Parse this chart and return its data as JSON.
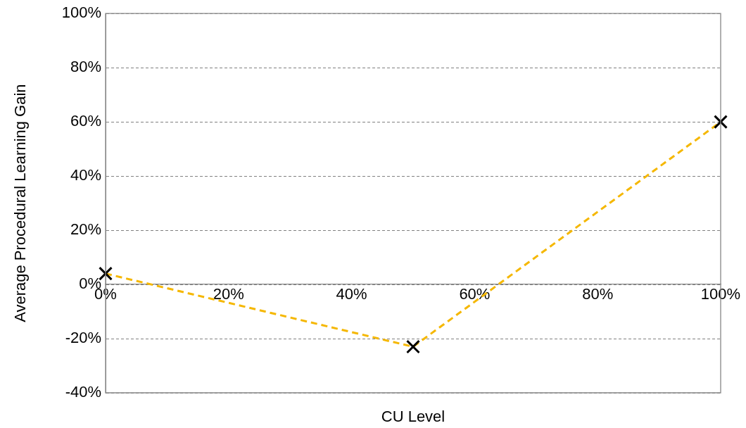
{
  "chart_data": {
    "type": "line",
    "xlabel": "CU Level",
    "ylabel": "Average Procedural Learning Gain",
    "x": [
      0,
      50,
      100
    ],
    "series": [
      {
        "color": "#f5b700",
        "values": [
          4,
          -23,
          60
        ]
      }
    ],
    "xlim": [
      0,
      100
    ],
    "xticks": [
      {
        "value": 0,
        "label": "0%"
      },
      {
        "value": 20,
        "label": "20%"
      },
      {
        "value": 40,
        "label": "40%"
      },
      {
        "value": 60,
        "label": "60%"
      },
      {
        "value": 80,
        "label": "80%"
      },
      {
        "value": 100,
        "label": "100%"
      }
    ],
    "ylim": [
      -40,
      100
    ],
    "yticks": [
      {
        "value": -40,
        "label": "-40%"
      },
      {
        "value": -20,
        "label": "-20%"
      },
      {
        "value": 0,
        "label": "0%"
      },
      {
        "value": 20,
        "label": "20%"
      },
      {
        "value": 40,
        "label": "40%"
      },
      {
        "value": 60,
        "label": "60%"
      },
      {
        "value": 80,
        "label": "80%"
      },
      {
        "value": 100,
        "label": "100%"
      }
    ],
    "grid": "y",
    "marker": "cross",
    "line_style": "dashed",
    "legend": false
  }
}
